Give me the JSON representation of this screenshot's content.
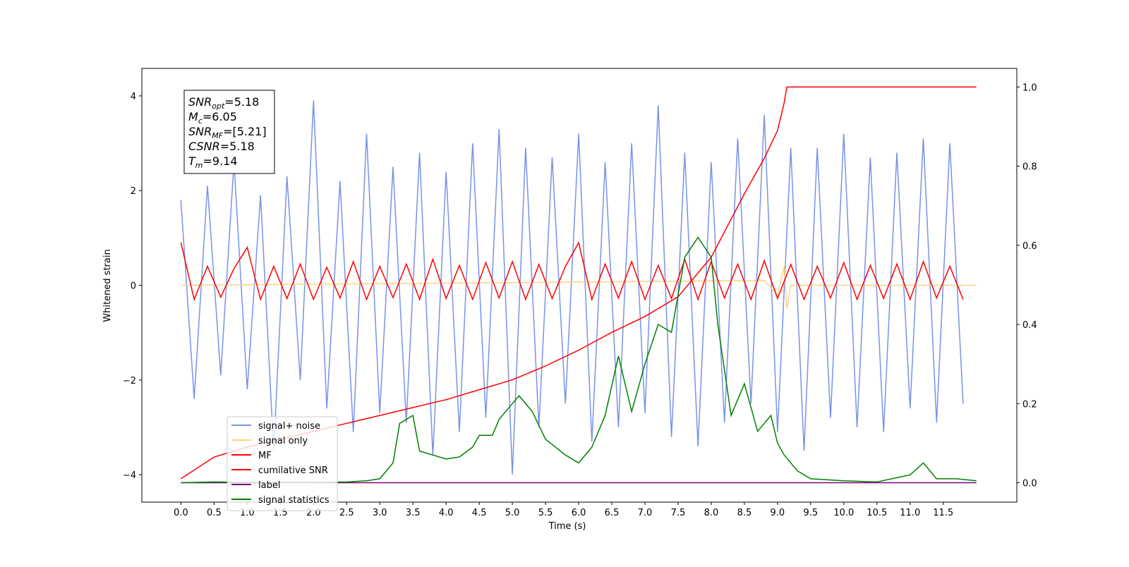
{
  "chart_data": {
    "type": "line",
    "x_label": "Time (s)",
    "y_label": "Whitened strain",
    "xlim": [
      -0.59,
      12.61
    ],
    "ylim": [
      -4.58,
      4.58
    ],
    "y2lim": [
      -0.049,
      1.047
    ],
    "xticks": [
      {
        "value": 0,
        "label": "0.0"
      },
      0.5,
      {
        "value": 1,
        "label": "1.0"
      },
      1.5,
      {
        "value": 2,
        "label": "2.0"
      },
      2.5,
      {
        "value": 3,
        "label": "3.0"
      },
      3.5,
      {
        "value": 4,
        "label": "4.0"
      },
      4.5,
      {
        "value": 5,
        "label": "5.0"
      },
      5.5,
      {
        "value": 6,
        "label": "6.0"
      },
      6.5,
      {
        "value": 7,
        "label": "7.0"
      },
      7.5,
      {
        "value": 8,
        "label": "8.0"
      },
      8.5,
      {
        "value": 9,
        "label": "9.0"
      },
      9.5,
      {
        "value": 10,
        "label": "10.0"
      },
      10.5,
      {
        "value": 11,
        "label": "11.0"
      },
      11.5
    ],
    "yticks": [
      {
        "value": -4,
        "label": "−4"
      },
      {
        "value": -2,
        "label": "−2"
      },
      0,
      2,
      4
    ],
    "y2ticks": [
      {
        "value": 0,
        "label": "0.0"
      },
      0.2,
      0.4,
      0.6,
      0.8,
      {
        "value": 1,
        "label": "1.0"
      }
    ],
    "legend_position": "lower left",
    "annotation": [
      {
        "base": "SNR",
        "sub": "opt",
        "rest": "=5.18"
      },
      {
        "base": "M",
        "sub": "c",
        "rest": "=6.05"
      },
      {
        "base": "SNR",
        "sub": "MF",
        "rest": "=[5.21]"
      },
      {
        "base": "CSNR",
        "sub": null,
        "rest": "=5.18"
      },
      {
        "base": "T",
        "sub": "m",
        "rest": "=9.14"
      }
    ],
    "series": [
      {
        "name": "signal+ noise",
        "color": "#7893e8",
        "x": [
          0,
          0.2,
          0.4,
          0.6,
          0.8,
          1.0,
          1.2,
          1.4,
          1.6,
          1.8,
          2.0,
          2.2,
          2.4,
          2.6,
          2.8,
          3.0,
          3.2,
          3.4,
          3.6,
          3.8,
          4.0,
          4.2,
          4.4,
          4.6,
          4.8,
          5.0,
          5.2,
          5.4,
          5.6,
          5.8,
          6.0,
          6.2,
          6.4,
          6.6,
          6.8,
          7.0,
          7.2,
          7.4,
          7.6,
          7.8,
          8.0,
          8.2,
          8.4,
          8.6,
          8.8,
          9.0,
          9.2,
          9.4,
          9.6,
          9.8,
          10.0,
          10.2,
          10.4,
          10.6,
          10.8,
          11.0,
          11.2,
          11.4,
          11.6,
          11.8
        ],
        "values": [
          1.8,
          -2.4,
          2.1,
          -1.9,
          2.6,
          -2.2,
          1.9,
          -3.5,
          2.3,
          -2.0,
          3.9,
          -2.6,
          2.2,
          -3.1,
          3.2,
          -2.7,
          2.5,
          -2.9,
          2.8,
          -3.6,
          2.4,
          -3.1,
          3.0,
          -2.8,
          3.3,
          -4.0,
          2.9,
          -3.0,
          2.7,
          -2.5,
          3.2,
          -3.3,
          2.6,
          -3.0,
          3.0,
          -2.7,
          3.8,
          -3.2,
          2.8,
          -3.4,
          2.6,
          -2.9,
          3.1,
          -2.5,
          3.6,
          -3.1,
          2.9,
          -3.5,
          2.9,
          -2.8,
          3.2,
          -3.0,
          2.7,
          -3.1,
          2.8,
          -2.6,
          3.1,
          -2.9,
          3.0,
          -2.5
        ]
      },
      {
        "name": "signal only",
        "color": "#ffd27f",
        "x": [
          0,
          8.8,
          9.0,
          9.1,
          9.14,
          9.2,
          12.0
        ],
        "values": [
          0,
          0.1,
          -0.2,
          0.4,
          -0.5,
          0,
          0
        ]
      },
      {
        "name": "MF",
        "color": "#ff0000",
        "x": [
          0,
          0.2,
          0.4,
          0.6,
          0.8,
          1.0,
          1.2,
          1.4,
          1.6,
          1.8,
          2.0,
          2.2,
          2.4,
          2.6,
          2.8,
          3.0,
          3.2,
          3.4,
          3.6,
          3.8,
          4.0,
          4.2,
          4.4,
          4.6,
          4.8,
          5.0,
          5.2,
          5.4,
          5.6,
          5.8,
          6.0,
          6.2,
          6.4,
          6.6,
          6.8,
          7.0,
          7.2,
          7.4,
          7.6,
          7.8,
          8.0,
          8.2,
          8.4,
          8.6,
          8.8,
          9.0,
          9.2,
          9.4,
          9.6,
          9.8,
          10.0,
          10.2,
          10.4,
          10.6,
          10.8,
          11.0,
          11.2,
          11.4,
          11.6,
          11.8
        ],
        "values": [
          0.9,
          -0.3,
          0.4,
          -0.25,
          0.35,
          0.8,
          -0.3,
          0.4,
          -0.28,
          0.45,
          -0.3,
          0.38,
          -0.27,
          0.5,
          -0.3,
          0.4,
          -0.26,
          0.45,
          -0.3,
          0.55,
          -0.28,
          0.42,
          -0.3,
          0.48,
          -0.27,
          0.5,
          -0.3,
          0.44,
          -0.28,
          0.4,
          0.9,
          -0.3,
          0.45,
          -0.27,
          0.5,
          -0.3,
          0.42,
          -0.28,
          0.55,
          -0.3,
          0.5,
          -0.27,
          0.45,
          -0.3,
          0.52,
          -0.28,
          0.44,
          -0.3,
          0.4,
          -0.27,
          0.48,
          -0.3,
          0.42,
          -0.28,
          0.45,
          -0.3,
          0.5,
          -0.27,
          0.4,
          -0.3
        ]
      },
      {
        "name": "cumilative SNR",
        "color": "#ff0000",
        "axis": "y2",
        "x": [
          0,
          0.5,
          1,
          1.5,
          2,
          2.5,
          3,
          3.5,
          4,
          4.5,
          5,
          5.5,
          6,
          6.5,
          7,
          7.5,
          8,
          8.5,
          8.8,
          9.0,
          9.1,
          9.14,
          12.0
        ],
        "values": [
          0.01,
          0.065,
          0.09,
          0.11,
          0.13,
          0.15,
          0.17,
          0.19,
          0.21,
          0.235,
          0.26,
          0.295,
          0.335,
          0.38,
          0.42,
          0.47,
          0.57,
          0.73,
          0.82,
          0.89,
          0.96,
          1.0,
          1.0
        ]
      },
      {
        "name": "label",
        "color": "#800080",
        "axis": "y2",
        "x": [
          0,
          12.0
        ],
        "values": [
          0,
          0
        ]
      },
      {
        "name": "signal statistics",
        "color": "#008000",
        "axis": "y2",
        "x": [
          0,
          0.5,
          1,
          1.5,
          2,
          2.5,
          2.8,
          3.0,
          3.2,
          3.3,
          3.5,
          3.6,
          3.8,
          4.0,
          4.2,
          4.4,
          4.5,
          4.7,
          4.8,
          5.0,
          5.1,
          5.3,
          5.5,
          5.8,
          6.0,
          6.2,
          6.4,
          6.6,
          6.8,
          7.0,
          7.2,
          7.4,
          7.6,
          7.8,
          8.0,
          8.1,
          8.3,
          8.5,
          8.7,
          8.9,
          9.0,
          9.1,
          9.3,
          9.5,
          10.0,
          10.5,
          11.0,
          11.2,
          11.4,
          11.7,
          12.0
        ],
        "values": [
          0.0,
          0.002,
          0.001,
          0.001,
          0.001,
          0.002,
          0.005,
          0.01,
          0.05,
          0.15,
          0.17,
          0.08,
          0.07,
          0.06,
          0.065,
          0.09,
          0.12,
          0.12,
          0.16,
          0.2,
          0.22,
          0.18,
          0.11,
          0.07,
          0.05,
          0.09,
          0.17,
          0.32,
          0.18,
          0.3,
          0.4,
          0.38,
          0.57,
          0.62,
          0.57,
          0.4,
          0.17,
          0.25,
          0.13,
          0.17,
          0.1,
          0.07,
          0.03,
          0.01,
          0.005,
          0.002,
          0.02,
          0.05,
          0.01,
          0.01,
          0.005
        ]
      }
    ]
  }
}
